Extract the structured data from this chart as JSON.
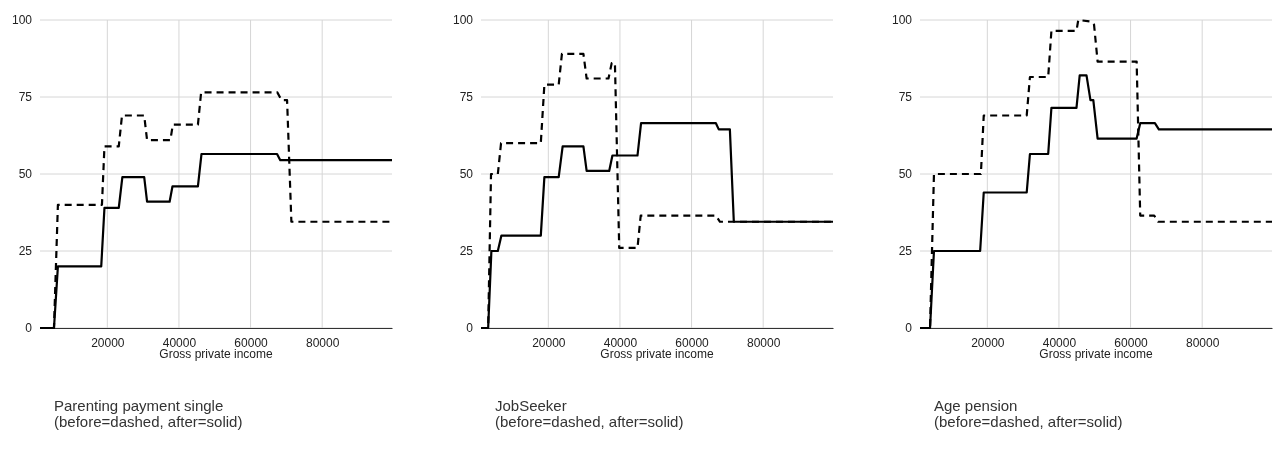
{
  "chart_data": [
    {
      "type": "line",
      "title": "Parenting payment single",
      "subtitle": "(before=dashed, after=solid)",
      "xlabel": "Gross private income",
      "xlim": [
        1200,
        99500
      ],
      "ylim": [
        0,
        100
      ],
      "xticks": [
        20000,
        40000,
        60000,
        80000
      ],
      "yticks": [
        0,
        25,
        50,
        75,
        100
      ],
      "grid": true,
      "series": [
        {
          "color": "#000000",
          "line_style": "dashed",
          "x": [
            1200,
            5100,
            6200,
            18500,
            19200,
            23200,
            24100,
            30300,
            31100,
            37600,
            38300,
            45300,
            46200,
            67500,
            68600,
            70200,
            71400,
            99500
          ],
          "values": [
            0,
            0,
            40,
            40,
            59,
            59,
            69,
            69,
            61,
            61,
            66,
            66,
            76.5,
            76.5,
            74,
            74,
            34.5,
            34.5
          ]
        },
        {
          "color": "#000000",
          "line_style": "solid",
          "x": [
            1200,
            5100,
            6200,
            18300,
            19200,
            23200,
            24200,
            30300,
            31100,
            37400,
            38200,
            45300,
            46300,
            67400,
            68300,
            99500
          ],
          "values": [
            0,
            0,
            20,
            20,
            39,
            39,
            49,
            49,
            41,
            41,
            46,
            46,
            56.5,
            56.5,
            54.5,
            54.5
          ]
        }
      ]
    },
    {
      "type": "line",
      "title": "JobSeeker",
      "subtitle": "(before=dashed, after=solid)",
      "xlabel": "Gross private income",
      "xlim": [
        1200,
        99500
      ],
      "ylim": [
        0,
        100
      ],
      "xticks": [
        20000,
        40000,
        60000,
        80000
      ],
      "yticks": [
        0,
        25,
        50,
        75,
        100
      ],
      "grid": true,
      "series": [
        {
          "color": "#000000",
          "line_style": "dashed",
          "x": [
            1200,
            3200,
            4000,
            5900,
            6800,
            17900,
            18900,
            22900,
            23800,
            29800,
            30700,
            36800,
            37700,
            38600,
            39800,
            44900,
            45800,
            66800,
            67900,
            99500
          ],
          "values": [
            0,
            0,
            50,
            50,
            60,
            60,
            79,
            79,
            89,
            89,
            81,
            81,
            86,
            86,
            26,
            26,
            36.5,
            36.5,
            34.5,
            34.5
          ]
        },
        {
          "color": "#000000",
          "line_style": "solid",
          "x": [
            1200,
            3200,
            4100,
            5900,
            6900,
            17900,
            18900,
            22900,
            24000,
            29800,
            30700,
            37000,
            37900,
            44900,
            45900,
            66800,
            67600,
            70700,
            71800,
            99500
          ],
          "values": [
            0,
            0,
            25,
            25,
            30,
            30,
            49,
            49,
            59,
            59,
            51,
            51,
            56,
            56,
            66.5,
            66.5,
            64.5,
            64.5,
            34.5,
            34.5
          ]
        }
      ]
    },
    {
      "type": "line",
      "title": "Age pension",
      "subtitle": "(before=dashed, after=solid)",
      "xlabel": "Gross private income",
      "xlim": [
        1200,
        99500
      ],
      "ylim": [
        0,
        100
      ],
      "xticks": [
        20000,
        40000,
        60000,
        80000
      ],
      "yticks": [
        0,
        25,
        50,
        75,
        100
      ],
      "grid": true,
      "series": [
        {
          "color": "#000000",
          "line_style": "dashed",
          "x": [
            1200,
            4000,
            5100,
            18200,
            19000,
            31000,
            31900,
            37000,
            37900,
            44900,
            45400,
            48900,
            49800,
            50800,
            61700,
            62700,
            66600,
            67700,
            99500
          ],
          "values": [
            0,
            0,
            50,
            50,
            69,
            69,
            81.5,
            81.5,
            96.5,
            96.5,
            100,
            99.5,
            98.5,
            86.5,
            86.5,
            36.5,
            36.5,
            34.5,
            34.5
          ]
        },
        {
          "color": "#000000",
          "line_style": "solid",
          "x": [
            1200,
            4000,
            5100,
            18000,
            19000,
            31000,
            31900,
            37000,
            37900,
            44900,
            45800,
            47700,
            48800,
            49600,
            50800,
            61700,
            62700,
            66800,
            67900,
            99500
          ],
          "values": [
            0,
            0,
            25,
            25,
            44,
            44,
            56.5,
            56.5,
            71.5,
            71.5,
            82,
            82,
            74,
            74,
            61.5,
            61.5,
            66.5,
            66.5,
            64.5,
            64.5
          ]
        }
      ]
    }
  ]
}
